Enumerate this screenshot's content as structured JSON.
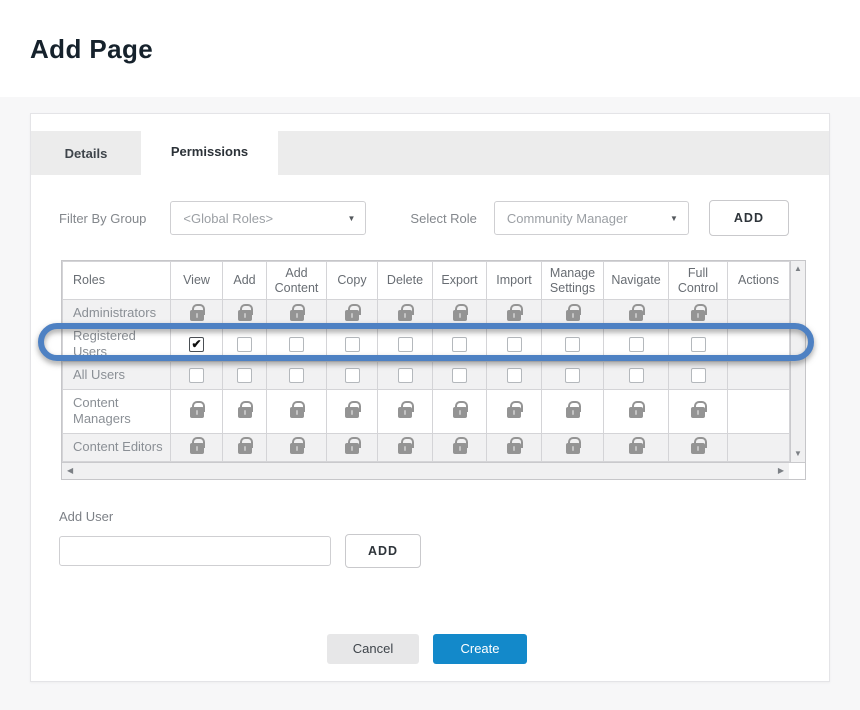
{
  "page": {
    "title": "Add Page"
  },
  "tabs": {
    "details": "Details",
    "permissions": "Permissions"
  },
  "toolbar": {
    "filter_by_group_label": "Filter By Group",
    "filter_by_group_value": "<Global Roles>",
    "select_role_label": "Select Role",
    "select_role_value": "Community Manager",
    "add_role_button": "ADD"
  },
  "permissions_table": {
    "columns": [
      "Roles",
      "View",
      "Add",
      "Add Content",
      "Copy",
      "Delete",
      "Export",
      "Import",
      "Manage Settings",
      "Navigate",
      "Full Control",
      "Actions"
    ],
    "rows": [
      {
        "role": "Administrators",
        "highlighted": false,
        "cells": [
          "lock",
          "lock",
          "lock",
          "lock",
          "lock",
          "lock",
          "lock",
          "lock",
          "lock",
          "lock",
          "none"
        ]
      },
      {
        "role": "Registered Users",
        "highlighted": true,
        "cells": [
          "checkbox_checked",
          "checkbox",
          "checkbox",
          "checkbox",
          "checkbox",
          "checkbox",
          "checkbox",
          "checkbox",
          "checkbox",
          "checkbox",
          "none"
        ]
      },
      {
        "role": "All Users",
        "highlighted": false,
        "cells": [
          "checkbox",
          "checkbox",
          "checkbox",
          "checkbox",
          "checkbox",
          "checkbox",
          "checkbox",
          "checkbox",
          "checkbox",
          "checkbox",
          "none"
        ]
      },
      {
        "role": "Content Managers",
        "highlighted": false,
        "cells": [
          "lock",
          "lock",
          "lock",
          "lock",
          "lock",
          "lock",
          "lock",
          "lock",
          "lock",
          "lock",
          "none"
        ]
      },
      {
        "role": "Content Editors",
        "highlighted": false,
        "cells": [
          "lock",
          "lock",
          "lock",
          "lock",
          "lock",
          "lock",
          "lock",
          "lock",
          "lock",
          "lock",
          "none"
        ]
      }
    ]
  },
  "add_user": {
    "label": "Add User",
    "input_value": "",
    "input_placeholder": "",
    "add_button": "ADD"
  },
  "footer": {
    "cancel_button": "Cancel",
    "create_button": "Create"
  },
  "icons": {
    "dropdown_arrow": "▼",
    "scroll_up": "▲",
    "scroll_down": "▼",
    "scroll_left": "◀",
    "scroll_right": "▶",
    "checkmark": "✔",
    "lock": "lock-icon"
  },
  "colors": {
    "primary_button": "#1389ca",
    "highlight_ring": "#4e81c3",
    "lock_gray": "#949494",
    "row_alt_gray": "#f1f1f2"
  }
}
